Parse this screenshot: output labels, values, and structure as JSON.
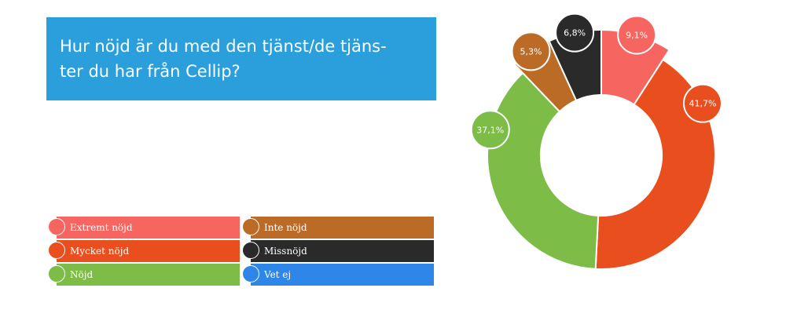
{
  "title": "Hur nöjd är du med den tjänst/de tjän-ster du har från Cellip?",
  "title_lines": [
    "Hur nöjd är du med den tjänst/de tjäns-",
    "ter du har från Cellip?"
  ],
  "colors": {
    "title_bg": "#2b9fdc",
    "extremt_nojd": "#f76560",
    "mycket_nojd": "#e94e1e",
    "nojd": "#7dbd47",
    "inte_nojd": "#bb6b25",
    "missnojd": "#2a2a2a",
    "vet_ej": "#2e87e8"
  },
  "legend": [
    {
      "label": "Extremt nöjd",
      "color": "#f76560"
    },
    {
      "label": "Mycket nöjd",
      "color": "#e94e1e"
    },
    {
      "label": "Nöjd",
      "color": "#7dbd47"
    },
    {
      "label": "Inte nöjd",
      "color": "#bb6b25"
    },
    {
      "label": "Missnöjd",
      "color": "#2a2a2a"
    },
    {
      "label": "Vet ej",
      "color": "#2e87e8"
    }
  ],
  "chart_data": {
    "type": "pie",
    "donut": true,
    "categories": [
      "Extremt nöjd",
      "Mycket nöjd",
      "Nöjd",
      "Inte nöjd",
      "Missnöjd"
    ],
    "values": [
      9.1,
      41.7,
      37.1,
      5.3,
      6.8
    ],
    "value_labels": [
      "9,1%",
      "41,7%",
      "37,1%",
      "5,3%",
      "6,8%"
    ],
    "colors": [
      "#f76560",
      "#e94e1e",
      "#7dbd47",
      "#bb6b25",
      "#2a2a2a"
    ],
    "exploded": [
      true,
      false,
      false,
      true,
      true
    ],
    "legend_position": "bottom-left"
  }
}
